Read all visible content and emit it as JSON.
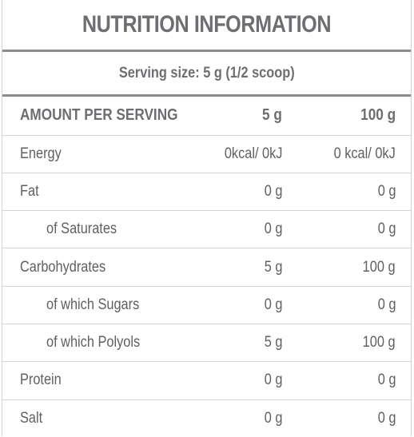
{
  "title": "NUTRITION INFORMATION",
  "serving_size": "Serving size: 5 g (1/2 scoop)",
  "header": {
    "label": "AMOUNT PER SERVING",
    "col1": "5 g",
    "col2": "100 g"
  },
  "rows": [
    {
      "label": "Energy",
      "col1": "0kcal/ 0kJ",
      "col2": "0 kcal/ 0kJ"
    },
    {
      "label": "Fat",
      "col1": "0 g",
      "col2": "0 g"
    },
    {
      "label": "of Saturates",
      "col1": "0 g",
      "col2": "0 g"
    },
    {
      "label": "Carbohydrates",
      "col1": "5 g",
      "col2": "100 g"
    },
    {
      "label": "of which Sugars",
      "col1": "0 g",
      "col2": "0 g"
    },
    {
      "label": "of which Polyols",
      "col1": "5 g",
      "col2": "100 g"
    },
    {
      "label": "Protein",
      "col1": "0 g",
      "col2": "0 g"
    },
    {
      "label": "Salt",
      "col1": "0 g",
      "col2": "0 g"
    }
  ]
}
